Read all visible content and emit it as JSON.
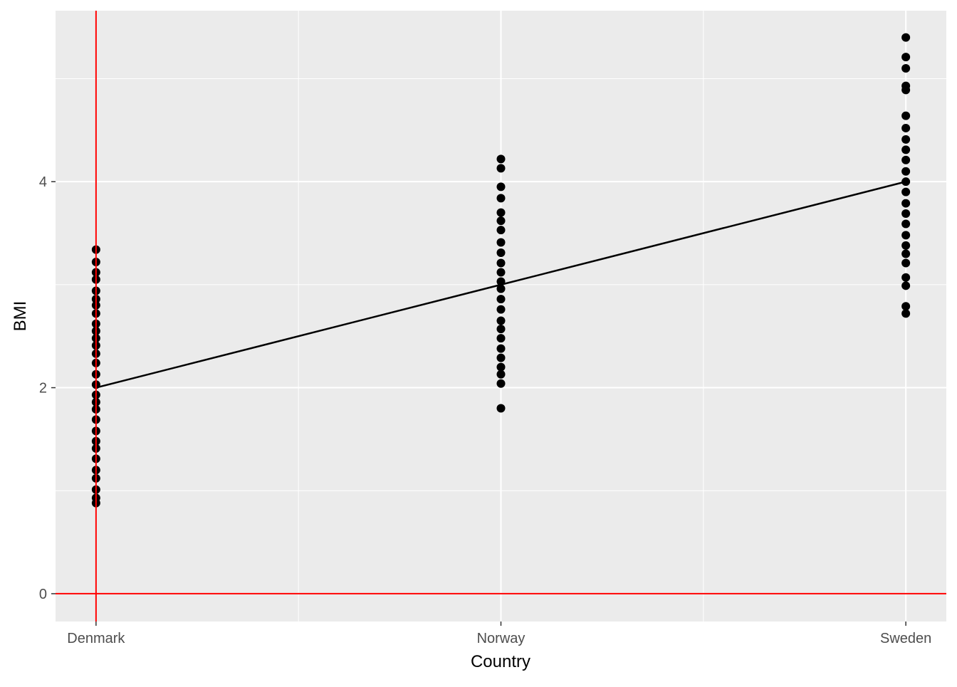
{
  "chart_data": {
    "type": "strip",
    "x_label": "Country",
    "y_label": "BMI",
    "categories": [
      "Denmark",
      "Norway",
      "Sweden"
    ],
    "values": [
      [
        3.34,
        3.22,
        3.12,
        3.05,
        2.94,
        2.86,
        2.8,
        2.72,
        2.62,
        2.55,
        2.48,
        2.41,
        2.33,
        2.24,
        2.13,
        2.03,
        1.93,
        1.86,
        1.79,
        1.69,
        1.58,
        1.48,
        1.41,
        1.31,
        1.2,
        1.12,
        1.01,
        0.93,
        0.88
      ],
      [
        4.22,
        4.13,
        3.95,
        3.84,
        3.7,
        3.62,
        3.53,
        3.41,
        3.31,
        3.21,
        3.12,
        3.03,
        2.96,
        2.86,
        2.76,
        2.65,
        2.57,
        2.48,
        2.38,
        2.29,
        2.2,
        2.13,
        2.04,
        1.8
      ],
      [
        5.4,
        5.21,
        5.1,
        4.93,
        4.89,
        4.64,
        4.52,
        4.41,
        4.31,
        4.21,
        4.1,
        4.0,
        3.9,
        3.79,
        3.69,
        3.59,
        3.48,
        3.38,
        3.3,
        3.21,
        3.07,
        2.99,
        2.79,
        2.72
      ]
    ],
    "point_color": "#000000",
    "line_values": [
      2,
      3,
      4
    ],
    "line_color": "#000000",
    "hline": 0,
    "vline": "Denmark",
    "reference_color": "#ff0000",
    "ylim": [
      -0.27,
      5.66
    ],
    "yticks": [
      0,
      2,
      4
    ],
    "y_minor_ticks": [
      1,
      3,
      5
    ],
    "grid": true
  }
}
